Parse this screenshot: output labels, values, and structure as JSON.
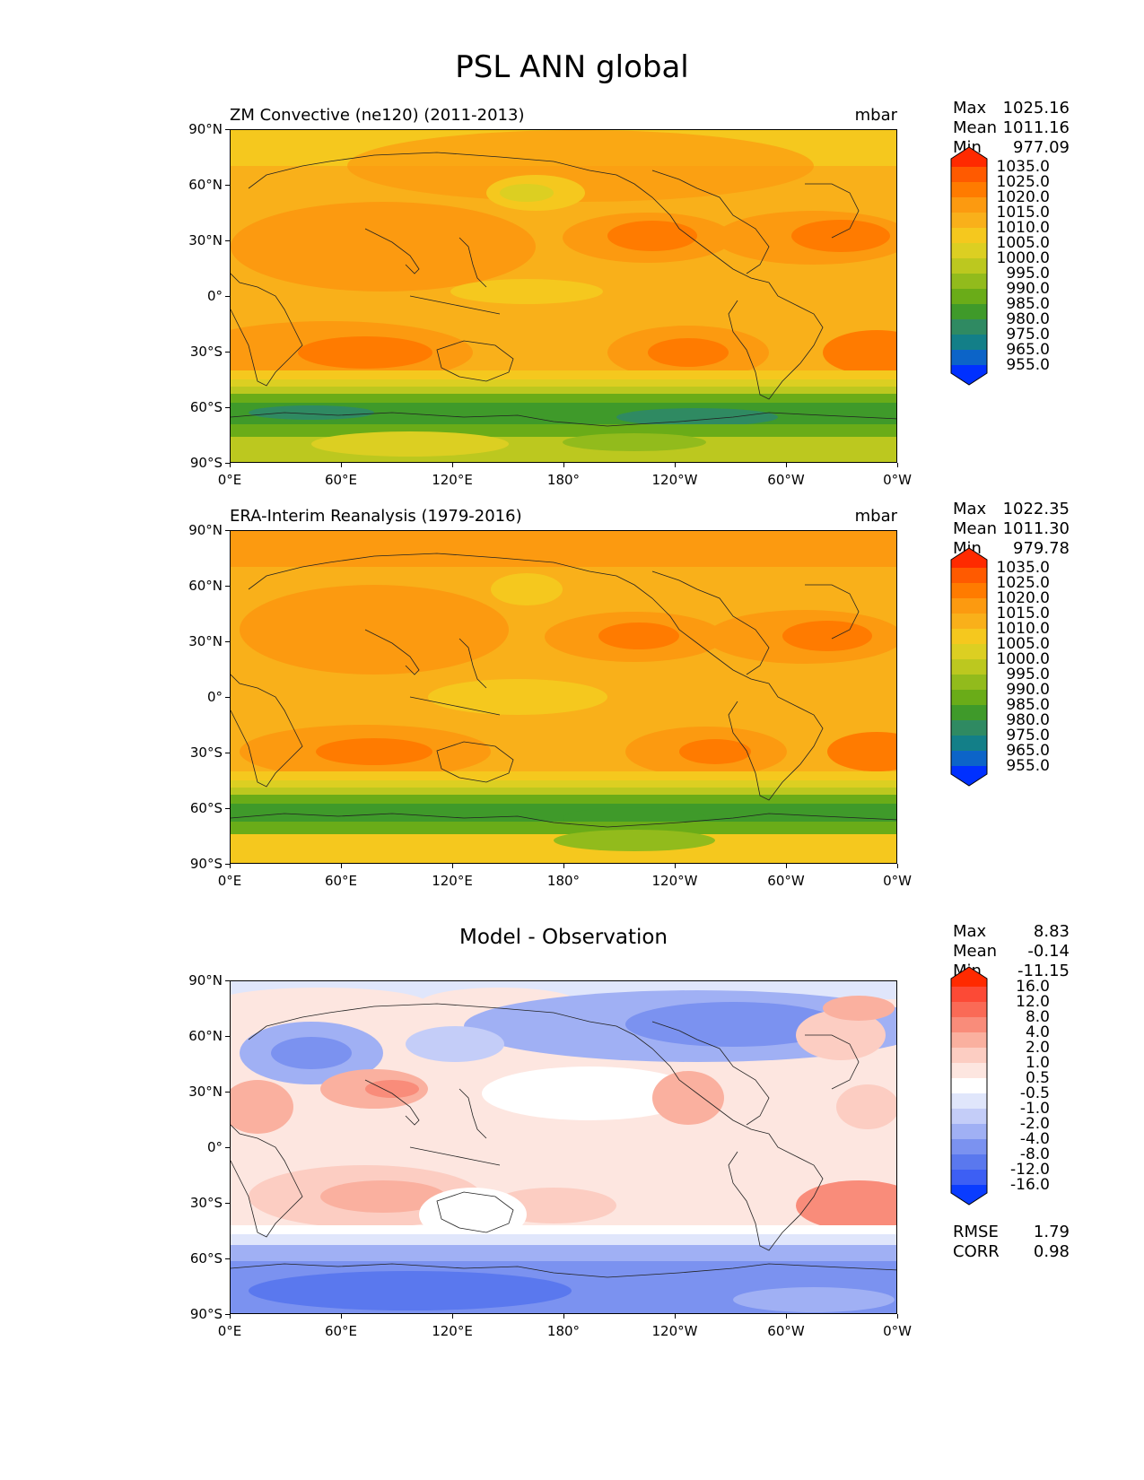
{
  "figure": {
    "title": "PSL ANN global"
  },
  "map_axes": {
    "lat_ticks": [
      "90°N",
      "60°N",
      "30°N",
      "0°",
      "30°S",
      "60°S",
      "90°S"
    ],
    "lon_ticks": [
      "0°E",
      "60°E",
      "120°E",
      "180°",
      "120°W",
      "60°W",
      "0°W"
    ]
  },
  "panels": [
    {
      "title": "ZM Convective (ne120) (2011-2013)",
      "units": "mbar",
      "stats": [
        {
          "label": "Max",
          "value": "1025.16"
        },
        {
          "label": "Mean",
          "value": "1011.16"
        },
        {
          "label": "Min",
          "value": "977.09"
        }
      ],
      "colorbar": {
        "labels": [
          "1035.0",
          "1025.0",
          "1020.0",
          "1015.0",
          "1010.0",
          "1005.0",
          "1000.0",
          "995.0",
          "990.0",
          "985.0",
          "980.0",
          "975.0",
          "965.0",
          "955.0"
        ],
        "colors": [
          "#ff2a00",
          "#ff5a00",
          "#ff7b00",
          "#fc9a10",
          "#f9b01a",
          "#f5c81e",
          "#dccf22",
          "#bcc81f",
          "#92bb1c",
          "#6aac18",
          "#3f9a2a",
          "#2f8a62",
          "#137f88",
          "#0c64c8",
          "#0030ff"
        ]
      }
    },
    {
      "title": "ERA-Interim Reanalysis (1979-2016)",
      "units": "mbar",
      "stats": [
        {
          "label": "Max",
          "value": "1022.35"
        },
        {
          "label": "Mean",
          "value": "1011.30"
        },
        {
          "label": "Min",
          "value": "979.78"
        }
      ],
      "colorbar": {
        "labels": [
          "1035.0",
          "1025.0",
          "1020.0",
          "1015.0",
          "1010.0",
          "1005.0",
          "1000.0",
          "995.0",
          "990.0",
          "985.0",
          "980.0",
          "975.0",
          "965.0",
          "955.0"
        ],
        "colors": [
          "#ff2a00",
          "#ff5a00",
          "#ff7b00",
          "#fc9a10",
          "#f9b01a",
          "#f5c81e",
          "#dccf22",
          "#bcc81f",
          "#92bb1c",
          "#6aac18",
          "#3f9a2a",
          "#2f8a62",
          "#137f88",
          "#0c64c8",
          "#0030ff"
        ]
      }
    },
    {
      "title": "Model - Observation",
      "units": "",
      "stats": [
        {
          "label": "Max",
          "value": "8.83"
        },
        {
          "label": "Mean",
          "value": "-0.14"
        },
        {
          "label": "Min",
          "value": "-11.15"
        }
      ],
      "colorbar": {
        "labels": [
          "16.0",
          "12.0",
          "8.0",
          "4.0",
          "2.0",
          "1.0",
          "0.5",
          "-0.5",
          "-1.0",
          "-2.0",
          "-4.0",
          "-8.0",
          "-12.0",
          "-16.0"
        ],
        "colors": [
          "#ff2a00",
          "#fc4a36",
          "#fa6a56",
          "#f98c7a",
          "#fab09f",
          "#fccdc2",
          "#fde6e0",
          "#ffffff",
          "#e0e6fb",
          "#c4cdf8",
          "#a0b0f4",
          "#7b92f0",
          "#5a78ee",
          "#3d5ff4",
          "#0a3cff"
        ]
      },
      "metrics": [
        {
          "label": "RMSE",
          "value": "1.79"
        },
        {
          "label": "CORR",
          "value": "0.98"
        }
      ]
    }
  ]
}
